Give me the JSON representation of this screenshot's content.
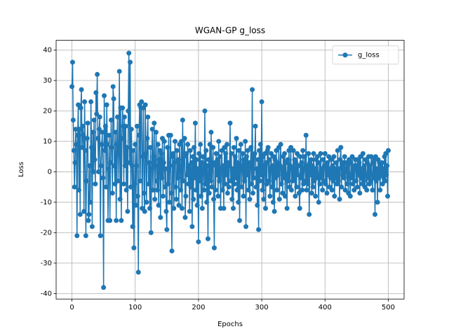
{
  "chart_data": {
    "type": "line",
    "title": "WGAN-GP g_loss",
    "x_label": "Epochs",
    "y_label": "Loss",
    "xlim": [
      -25,
      525
    ],
    "xticks": [
      0,
      100,
      200,
      300,
      400,
      500
    ],
    "ylim": [
      -41.8,
      43.2
    ],
    "yticks": [
      -40,
      -30,
      -20,
      -10,
      0,
      10,
      20,
      30,
      40
    ],
    "grid": true,
    "legend": "upper right",
    "series": [
      {
        "name": "g_loss",
        "color": "#1f77b4",
        "values": [
          28,
          36,
          17,
          7,
          -5,
          3,
          14,
          9,
          -21,
          12,
          22,
          -6,
          14,
          -14,
          21,
          27,
          8,
          15,
          12,
          -13,
          23,
          7,
          -21,
          -3,
          11,
          16,
          -16,
          -14,
          2,
          -10,
          23,
          8,
          -18,
          13,
          0,
          17,
          4,
          -4,
          26,
          19,
          32,
          11,
          0,
          14,
          18,
          -21,
          2,
          9,
          13,
          -2,
          -38,
          25,
          7,
          15,
          -5,
          22,
          9,
          -16,
          1,
          12,
          -16,
          3,
          17,
          8,
          -7,
          28,
          24,
          2,
          -4,
          13,
          -16,
          9,
          18,
          -3,
          6,
          33,
          -9,
          21,
          -16,
          11,
          21,
          15,
          -4,
          18,
          2,
          15,
          -6,
          8,
          -13,
          20,
          39,
          3,
          36,
          -5,
          14,
          2,
          -18,
          7,
          -25,
          -4,
          9,
          -11,
          2,
          15,
          -8,
          -33,
          12,
          22,
          -3,
          21,
          23,
          -12,
          5,
          21,
          -7,
          -13,
          22,
          6,
          -10,
          11,
          18,
          -4,
          3,
          -12,
          8,
          -20,
          1,
          14,
          -6,
          5,
          16,
          -9,
          2,
          13,
          -3,
          -6,
          9,
          -11,
          4,
          7,
          -15,
          6,
          -2,
          11,
          -8,
          3,
          10,
          -5,
          1,
          -13,
          -19,
          8,
          -4,
          12,
          -10,
          2,
          12,
          -7,
          -26,
          5,
          6,
          -12,
          3,
          10,
          -5,
          -9,
          7,
          -2,
          4,
          -11,
          9,
          1,
          -6,
          10,
          -12,
          17,
          -3,
          5,
          11,
          -15,
          -8,
          6,
          -1,
          9,
          -4,
          2,
          -13,
          7,
          -5,
          3,
          -18,
          5,
          -9,
          8,
          -2,
          16,
          -6,
          4,
          -11,
          1,
          -23,
          6,
          -3,
          9,
          -8,
          3,
          -12,
          5,
          1,
          -6,
          20,
          -4,
          7,
          -10,
          2,
          -22,
          4,
          -7,
          9,
          -3,
          13,
          -5,
          2,
          8,
          -9,
          -25,
          3,
          -6,
          6,
          -1,
          4,
          -8,
          10,
          -3,
          5,
          -12,
          1,
          7,
          -6,
          2,
          -12,
          8,
          -4,
          6,
          -1,
          9,
          -7,
          3,
          -5,
          2,
          16,
          -3,
          6,
          -9,
          1,
          -12,
          8,
          -4,
          5,
          -2,
          11,
          -6,
          3,
          -10,
          7,
          -16,
          2,
          9,
          -5,
          1,
          6,
          -8,
          4,
          -3,
          10,
          -18,
          5,
          -1,
          7,
          -6,
          3,
          -9,
          2,
          8,
          -4,
          27,
          -7,
          5,
          -2,
          6,
          15,
          -5,
          1,
          -11,
          4,
          -19,
          7,
          -3,
          9,
          -1,
          23,
          -6,
          5,
          -9,
          2,
          6,
          -12,
          3,
          -4,
          7,
          8,
          -3,
          4,
          -8,
          1,
          6,
          -5,
          2,
          -10,
          5,
          -13,
          4,
          -2,
          7,
          -6,
          3,
          -1,
          8,
          -9,
          2,
          9,
          -4,
          1,
          -7,
          5,
          -2,
          6,
          -8,
          3,
          -1,
          -12,
          4,
          -3,
          7,
          -5,
          2,
          8,
          -6,
          1,
          -3,
          7,
          -2,
          4,
          -8,
          3,
          -5,
          6,
          -1,
          2,
          -7,
          -12,
          5,
          -2,
          3,
          -6,
          7,
          -4,
          1,
          5,
          -3,
          12,
          -6,
          2,
          -4,
          6,
          -14,
          3,
          -1,
          4,
          -7,
          2,
          -5,
          6,
          -3,
          1,
          -8,
          4,
          -2,
          5,
          -1,
          -10,
          3,
          -4,
          6,
          -2,
          1,
          -6,
          4,
          -3,
          2,
          6,
          -4,
          2,
          -7,
          3,
          -1,
          5,
          -5,
          1,
          -2,
          4,
          -6,
          2,
          -3,
          5,
          -8,
          1,
          -2,
          3,
          -4,
          7,
          -3,
          1,
          -9,
          4,
          8,
          -5,
          2,
          -1,
          3,
          -2,
          5,
          -6,
          1,
          3,
          -4,
          2,
          -7,
          4,
          -1,
          -8,
          3,
          -2,
          5,
          -4,
          1,
          -6,
          2,
          4,
          -3,
          2,
          -5,
          4,
          -1,
          3,
          -7,
          5,
          -2,
          1,
          -4,
          6,
          -3,
          2,
          -5,
          4,
          -1,
          -6,
          3,
          -2,
          5,
          -4,
          2,
          -3,
          5,
          -1,
          -6,
          3,
          -2,
          4,
          -14,
          5,
          -3,
          1,
          -10,
          4,
          -2,
          3,
          -6,
          2,
          -1,
          3,
          -4,
          1,
          -2,
          5,
          -3,
          6,
          -1,
          2,
          -8,
          7
        ]
      }
    ]
  }
}
